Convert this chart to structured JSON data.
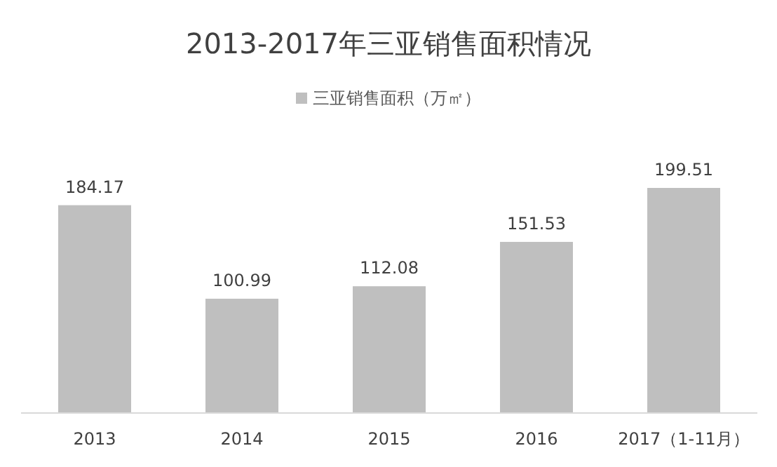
{
  "chart_data": {
    "type": "bar",
    "title": "2013-2017年三亚销售面积情况",
    "categories": [
      "2013",
      "2014",
      "2015",
      "2016",
      "2017（1-11月）"
    ],
    "series": [
      {
        "name": "三亚销售面积（万㎡）",
        "color": "#bfbfbf",
        "values": [
          184.17,
          100.99,
          112.08,
          151.53,
          199.51
        ]
      }
    ],
    "data_labels": true,
    "legend": "top"
  }
}
